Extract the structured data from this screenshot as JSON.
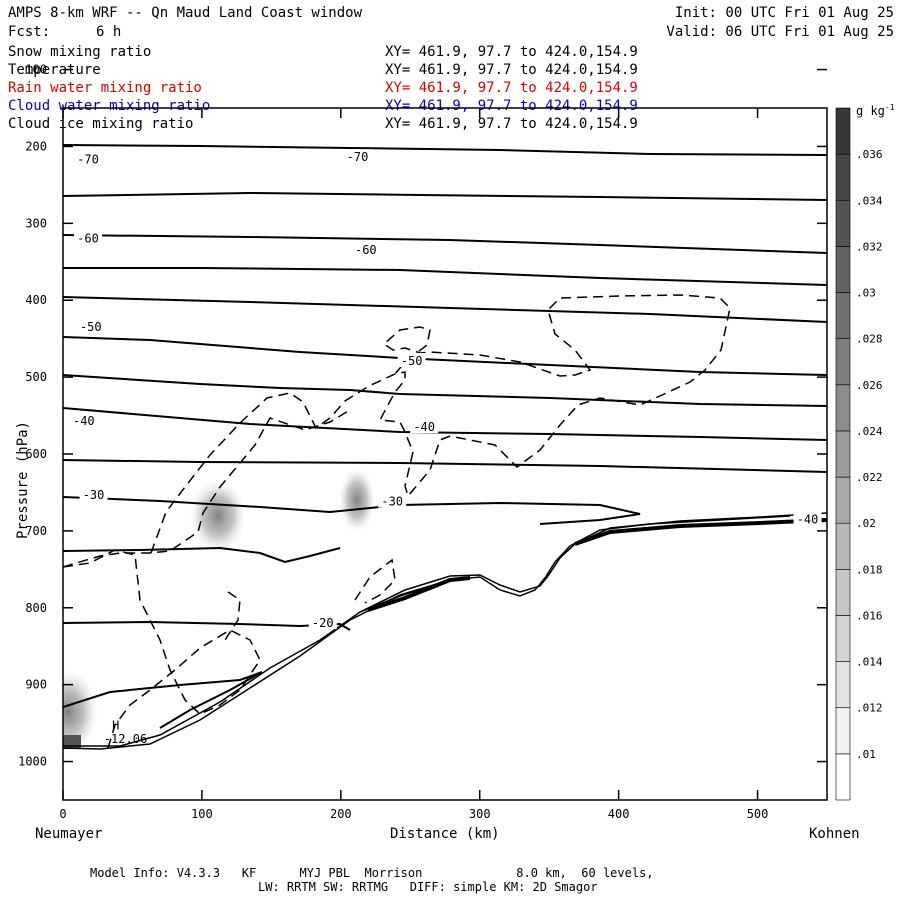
{
  "header": {
    "title": "AMPS 8-km WRF -- Qn Maud Land Coast window",
    "fcst_label": "Fcst:",
    "fcst_value": "6 h",
    "init": "Init: 00 UTC Fri 01 Aug 25",
    "valid": "Valid: 06 UTC Fri 01 Aug 25"
  },
  "fields": [
    {
      "name": "Snow mixing ratio",
      "xy": "XY= 461.9, 97.7 to 424.0,154.9",
      "color": "#000000"
    },
    {
      "name": "Temperature",
      "xy": "XY= 461.9, 97.7 to 424.0,154.9",
      "color": "#000000"
    },
    {
      "name": "Rain water mixing ratio",
      "xy": "XY= 461.9, 97.7 to 424.0,154.9",
      "color": "#e00000"
    },
    {
      "name": "Cloud water mixing ratio",
      "xy": "XY= 461.9, 97.7 to 424.0,154.9",
      "color": "#0000cc"
    },
    {
      "name": "Cloud ice mixing ratio",
      "xy": "XY= 461.9, 97.7 to 424.0,154.9",
      "color": "#000000"
    }
  ],
  "chart_data": {
    "type": "contour",
    "xlabel": "Distance (km)",
    "ylabel": "Pressure (hPa)",
    "xlim": [
      0,
      550
    ],
    "ylim": [
      150,
      1050
    ],
    "y_reversed": true,
    "x_ticks": [
      0,
      100,
      200,
      300,
      400,
      500
    ],
    "y_ticks": [
      100,
      200,
      300,
      400,
      500,
      600,
      700,
      800,
      900,
      1000
    ],
    "endpoints": {
      "left": "Neumayer",
      "right": "Kohnen"
    },
    "colorbar": {
      "unit": "g kg",
      "unit_sup": "-1",
      "levels": [
        0.01,
        0.012,
        0.014,
        0.016,
        0.018,
        0.02,
        0.022,
        0.024,
        0.026,
        0.028,
        0.03,
        0.032,
        0.034,
        0.036
      ],
      "labels": [
        ".01",
        ".012",
        ".014",
        ".016",
        ".018",
        ".02",
        ".022",
        ".024",
        ".026",
        ".028",
        ".03",
        ".032",
        ".034",
        ".036"
      ]
    },
    "isotherm_labels": [
      {
        "text": "-70",
        "x": 18,
        "p": 217
      },
      {
        "text": "-70",
        "x": 212,
        "p": 214
      },
      {
        "text": "-60",
        "x": 18,
        "p": 320
      },
      {
        "text": "-60",
        "x": 218,
        "p": 335
      },
      {
        "text": "-50",
        "x": 20,
        "p": 435
      },
      {
        "text": "-50",
        "x": 251,
        "p": 479
      },
      {
        "text": "-40",
        "x": 15,
        "p": 557
      },
      {
        "text": "-40",
        "x": 260,
        "p": 565
      },
      {
        "text": "-30",
        "x": 22,
        "p": 653
      },
      {
        "text": "-30",
        "x": 237,
        "p": 662
      },
      {
        "text": "-20",
        "x": 187,
        "p": 820
      },
      {
        "text": "-40",
        "x": 536,
        "p": 685
      }
    ],
    "high_marker": {
      "text": "H",
      "x": 38,
      "p": 958
    },
    "min_label": {
      "text": "-12.06",
      "x": 45,
      "p": 976
    },
    "model_info": "Model Info: V4.3.3   KF      MYJ PBL  Morrison             8.0 km,  60 levels,",
    "model_info2": "LW: RRTM SW: RRTMG   DIFF: simple KM: 2D Smagor"
  }
}
